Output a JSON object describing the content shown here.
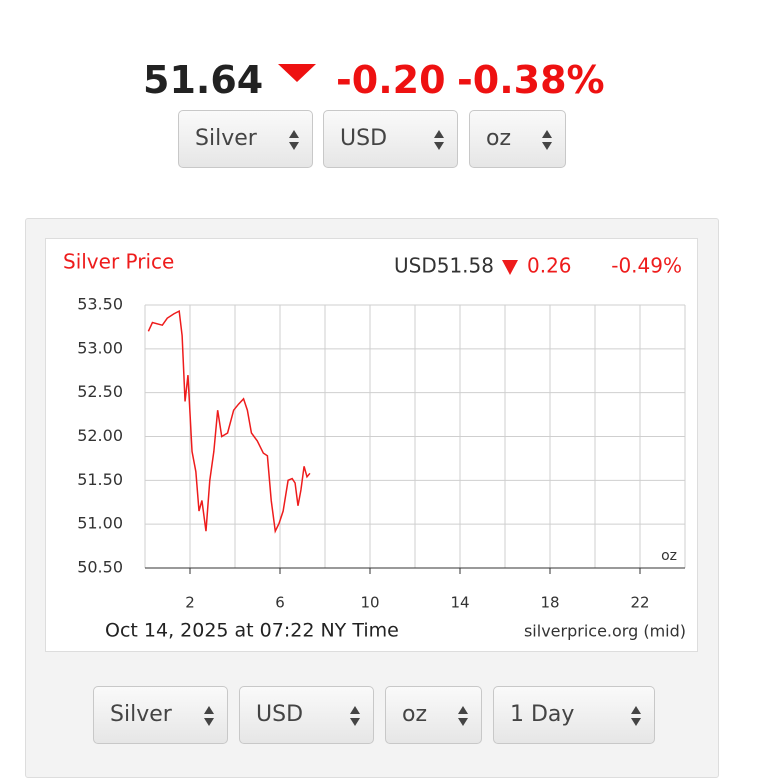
{
  "header": {
    "price": "51.64",
    "change": "-0.20",
    "change_pct": "-0.38%"
  },
  "top_selects": [
    "Silver",
    "USD",
    "oz"
  ],
  "chart_data": {
    "type": "line",
    "title": "Silver Price",
    "quote": {
      "price": "USD51.58",
      "change": "0.26",
      "change_pct": "-0.49%"
    },
    "x": [
      0.15,
      0.33,
      0.77,
      0.99,
      1.29,
      1.52,
      1.65,
      1.78,
      1.91,
      2.09,
      2.26,
      2.4,
      2.53,
      2.71,
      2.88,
      3.06,
      3.23,
      3.41,
      3.67,
      3.94,
      4.16,
      4.38,
      4.55,
      4.73,
      4.99,
      5.26,
      5.44,
      5.61,
      5.79,
      5.96,
      6.14,
      6.36,
      6.54,
      6.67,
      6.8,
      6.93,
      7.07,
      7.2,
      7.33
    ],
    "series": [
      {
        "color": "#ee1c1c",
        "values": [
          53.2,
          53.3,
          53.27,
          53.35,
          53.4,
          53.43,
          53.15,
          52.4,
          52.7,
          51.83,
          51.6,
          51.15,
          51.27,
          50.92,
          51.5,
          51.83,
          52.3,
          52.0,
          52.04,
          52.3,
          52.37,
          52.43,
          52.3,
          52.04,
          51.95,
          51.81,
          51.78,
          51.27,
          50.92,
          51.01,
          51.15,
          51.5,
          51.52,
          51.47,
          51.21,
          51.39,
          51.66,
          51.54,
          51.58
        ]
      }
    ],
    "xlim": [
      0,
      24
    ],
    "ylim": [
      50.5,
      53.5
    ],
    "xticks": [
      2,
      6,
      10,
      14,
      18,
      22
    ],
    "xgrid": [
      0,
      2,
      4,
      6,
      8,
      10,
      12,
      14,
      16,
      18,
      20,
      22,
      24
    ],
    "yticks": [
      {
        "value": 50.5,
        "label": "50.50"
      },
      {
        "value": 51,
        "label": "51.00"
      },
      {
        "value": 51.5,
        "label": "51.50"
      },
      {
        "value": 52,
        "label": "52.00"
      },
      {
        "value": 52.5,
        "label": "52.50"
      },
      {
        "value": 53,
        "label": "53.00"
      },
      {
        "value": 53.5,
        "label": "53.50"
      }
    ],
    "grid": true,
    "unit_label": "oz",
    "footer_left": "Oct 14, 2025 at 07:22 NY Time",
    "footer_right": "silverprice.org (mid)"
  },
  "bottom_selects": [
    "Silver",
    "USD",
    "oz",
    "1 Day"
  ]
}
